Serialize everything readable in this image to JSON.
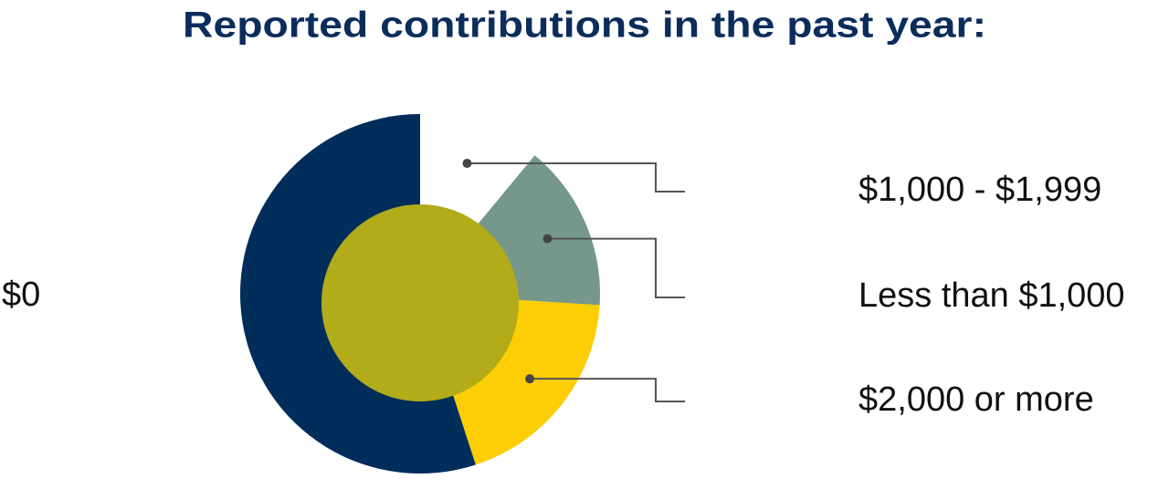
{
  "chart_data": {
    "type": "pie",
    "title": "Reported contributions in the past year:",
    "categories": [
      "$1,000 - $1,999",
      "Less than $1,000",
      "$2,000 or more",
      "$0"
    ],
    "values": [
      11,
      15,
      19,
      55
    ],
    "colors": [
      "#ffffff",
      "#76988a",
      "#fdcd05",
      "#002d5a"
    ]
  }
}
